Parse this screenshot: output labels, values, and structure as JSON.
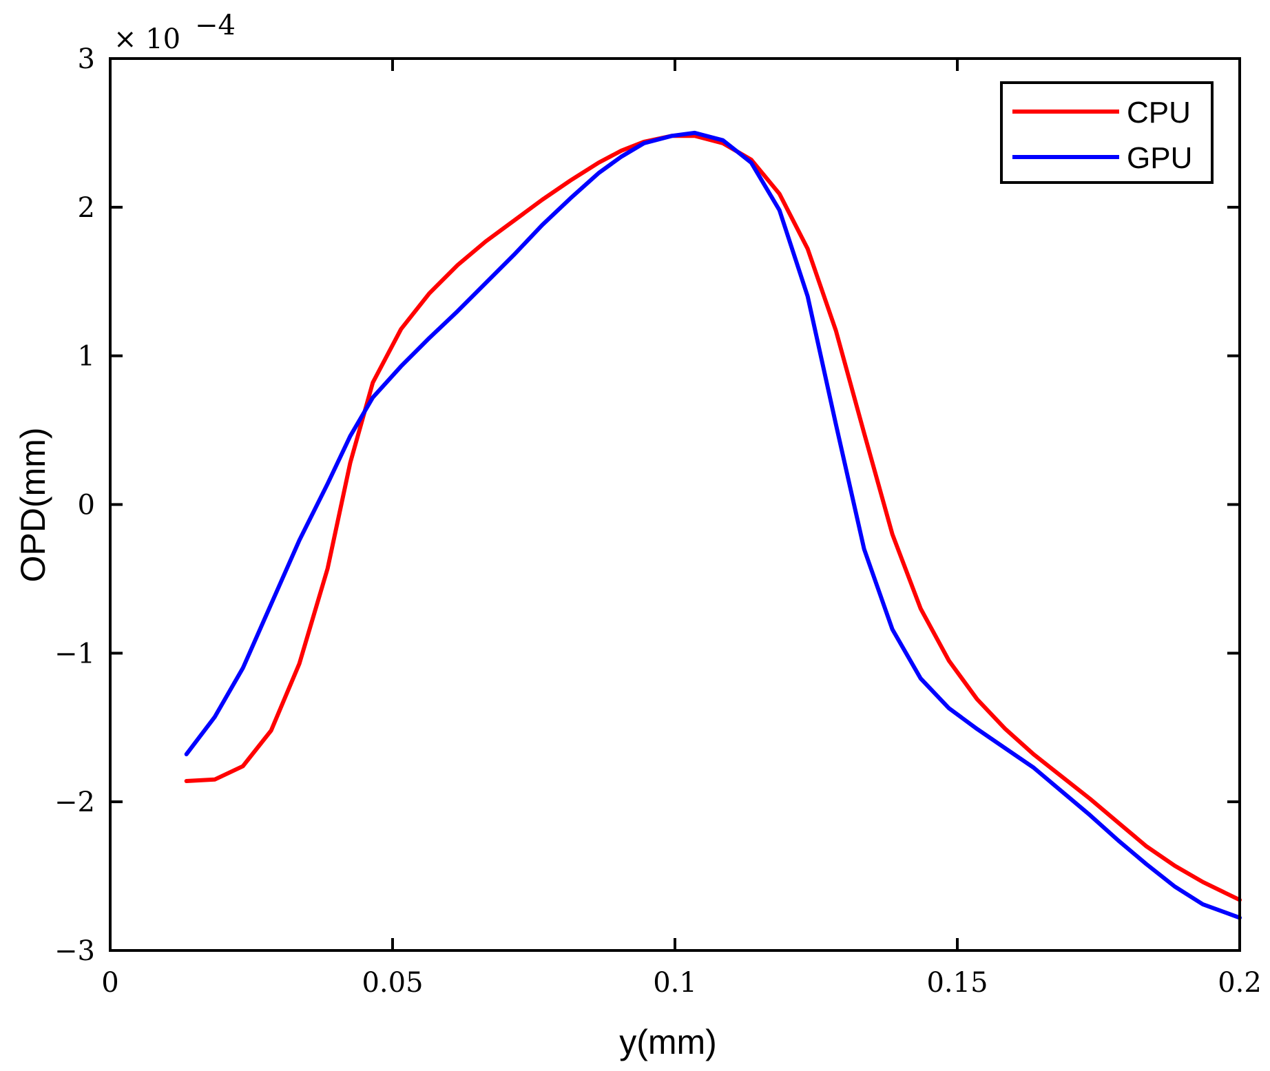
{
  "chart_data": {
    "type": "line",
    "title": "",
    "xlabel": "y(mm)",
    "ylabel": "OPD(mm)",
    "xlim": [
      0,
      0.2
    ],
    "ylim": [
      -3,
      3
    ],
    "y_scale_note": {
      "base": "× 10",
      "exponent": "−4"
    },
    "x_ticks": [
      0,
      0.05,
      0.1,
      0.15,
      0.2
    ],
    "x_tick_labels": [
      "0",
      "0.05",
      "0.1",
      "0.15",
      "0.2"
    ],
    "y_ticks": [
      -3,
      -2,
      -1,
      0,
      1,
      2,
      3
    ],
    "y_tick_labels": [
      "−3",
      "−2",
      "−1",
      "0",
      "1",
      "2",
      "3"
    ],
    "legend_position": "top-right",
    "series": [
      {
        "name": "CPU",
        "color": "#ff0000",
        "x": [
          0.0135,
          0.0185,
          0.0235,
          0.0285,
          0.0335,
          0.0385,
          0.0425,
          0.0465,
          0.0515,
          0.0565,
          0.0615,
          0.0665,
          0.0715,
          0.0765,
          0.0815,
          0.0865,
          0.0905,
          0.0945,
          0.0995,
          0.1035,
          0.1085,
          0.1135,
          0.1185,
          0.1235,
          0.1285,
          0.1335,
          0.1385,
          0.1435,
          0.1485,
          0.1535,
          0.1585,
          0.1635,
          0.1685,
          0.1735,
          0.1785,
          0.1835,
          0.1885,
          0.1935,
          0.2
        ],
        "values": [
          -1.86,
          -1.85,
          -1.76,
          -1.52,
          -1.07,
          -0.43,
          0.28,
          0.82,
          1.18,
          1.42,
          1.61,
          1.77,
          1.91,
          2.05,
          2.18,
          2.3,
          2.38,
          2.44,
          2.48,
          2.48,
          2.43,
          2.32,
          2.09,
          1.72,
          1.17,
          0.48,
          -0.2,
          -0.7,
          -1.05,
          -1.31,
          -1.51,
          -1.68,
          -1.83,
          -1.98,
          -2.14,
          -2.3,
          -2.43,
          -2.54,
          -2.66
        ]
      },
      {
        "name": "GPU",
        "color": "#0000ff",
        "x": [
          0.0135,
          0.0185,
          0.0235,
          0.0285,
          0.0335,
          0.0385,
          0.0425,
          0.0465,
          0.0515,
          0.0565,
          0.0615,
          0.0665,
          0.0715,
          0.0765,
          0.0815,
          0.0865,
          0.0905,
          0.0945,
          0.0995,
          0.1035,
          0.1085,
          0.1135,
          0.1185,
          0.1235,
          0.1285,
          0.1335,
          0.1385,
          0.1435,
          0.1485,
          0.1535,
          0.1585,
          0.1635,
          0.1685,
          0.1735,
          0.1785,
          0.1835,
          0.1885,
          0.1935,
          0.2
        ],
        "values": [
          -1.68,
          -1.43,
          -1.1,
          -0.67,
          -0.24,
          0.14,
          0.46,
          0.72,
          0.93,
          1.12,
          1.3,
          1.49,
          1.68,
          1.88,
          2.06,
          2.23,
          2.34,
          2.43,
          2.48,
          2.5,
          2.45,
          2.3,
          1.98,
          1.4,
          0.54,
          -0.3,
          -0.84,
          -1.17,
          -1.37,
          -1.51,
          -1.64,
          -1.77,
          -1.93,
          -2.09,
          -2.26,
          -2.42,
          -2.57,
          -2.69,
          -2.78
        ]
      }
    ]
  }
}
